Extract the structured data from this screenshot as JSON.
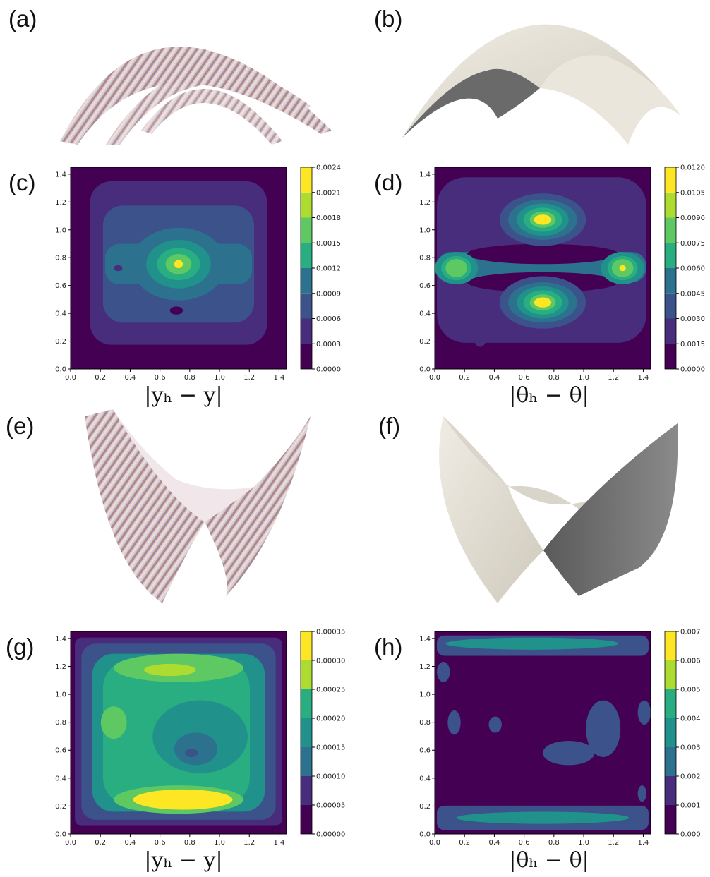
{
  "panels": {
    "a": "(a)",
    "b": "(b)",
    "c": "(c)",
    "d": "(d)",
    "e": "(e)",
    "f": "(f)",
    "g": "(g)",
    "h": "(h)"
  },
  "captions": {
    "c": "|yₕ − y|",
    "d": "|θₕ − θ|",
    "g": "|yₕ − y|",
    "h": "|θₕ − θ|"
  },
  "colors": {
    "viridis": [
      "#440154",
      "#472d7b",
      "#3b528b",
      "#2c728e",
      "#21918c",
      "#28ae80",
      "#5ec962",
      "#addc30",
      "#fde725"
    ]
  },
  "chart_data": [
    {
      "id": "c",
      "type": "heatmap",
      "title": "",
      "xlabel": "",
      "ylabel": "",
      "xlim": [
        0,
        1.45
      ],
      "ylim": [
        0,
        1.45
      ],
      "xticks": [
        "0.0",
        "0.2",
        "0.4",
        "0.6",
        "0.8",
        "1.0",
        "1.2",
        "1.4"
      ],
      "yticks": [
        "0.0",
        "0.2",
        "0.4",
        "0.6",
        "0.8",
        "1.0",
        "1.2",
        "1.4"
      ],
      "colorbar": [
        "0.0000",
        "0.0003",
        "0.0006",
        "0.0009",
        "0.0012",
        "0.0015",
        "0.0018",
        "0.0021",
        "0.0024"
      ]
    },
    {
      "id": "d",
      "type": "heatmap",
      "title": "",
      "xlabel": "",
      "ylabel": "",
      "xlim": [
        0,
        1.45
      ],
      "ylim": [
        0,
        1.45
      ],
      "xticks": [
        "0.0",
        "0.2",
        "0.4",
        "0.6",
        "0.8",
        "1.0",
        "1.2",
        "1.4"
      ],
      "yticks": [
        "0.0",
        "0.2",
        "0.4",
        "0.6",
        "0.8",
        "1.0",
        "1.2",
        "1.4"
      ],
      "colorbar": [
        "0.0000",
        "0.0015",
        "0.0030",
        "0.0045",
        "0.0060",
        "0.0075",
        "0.0090",
        "0.0105",
        "0.0120"
      ]
    },
    {
      "id": "g",
      "type": "heatmap",
      "title": "",
      "xlabel": "",
      "ylabel": "",
      "xlim": [
        0,
        1.45
      ],
      "ylim": [
        0,
        1.45
      ],
      "xticks": [
        "0.0",
        "0.2",
        "0.4",
        "0.6",
        "0.8",
        "1.0",
        "1.2",
        "1.4"
      ],
      "yticks": [
        "0.0",
        "0.2",
        "0.4",
        "0.6",
        "0.8",
        "1.0",
        "1.2",
        "1.4"
      ],
      "colorbar": [
        "0.00000",
        "0.00005",
        "0.00010",
        "0.00015",
        "0.00020",
        "0.00025",
        "0.00030",
        "0.00035"
      ]
    },
    {
      "id": "h",
      "type": "heatmap",
      "title": "",
      "xlabel": "",
      "ylabel": "",
      "xlim": [
        0,
        1.45
      ],
      "ylim": [
        0,
        1.45
      ],
      "xticks": [
        "0.0",
        "0.2",
        "0.4",
        "0.6",
        "0.8",
        "1.0",
        "1.2",
        "1.4"
      ],
      "yticks": [
        "0.0",
        "0.2",
        "0.4",
        "0.6",
        "0.8",
        "1.0",
        "1.2",
        "1.4"
      ],
      "colorbar": [
        "0.000",
        "0.001",
        "0.002",
        "0.003",
        "0.004",
        "0.005",
        "0.006",
        "0.007"
      ]
    }
  ]
}
